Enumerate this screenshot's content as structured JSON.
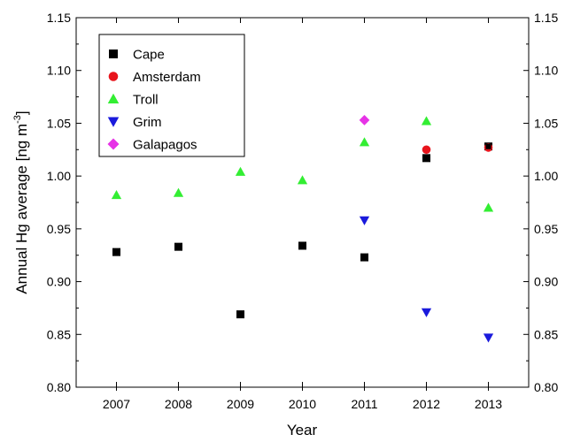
{
  "chart_data": {
    "type": "scatter",
    "title": "",
    "xlabel": "Year",
    "ylabel_main": "Annual Hg average [ng m",
    "ylabel_sup": "-3",
    "ylabel_close": "]",
    "x_ticks": [
      2007,
      2008,
      2009,
      2010,
      2011,
      2012,
      2013
    ],
    "xlim": [
      2006.35,
      2013.65
    ],
    "ylim": [
      0.8,
      1.15
    ],
    "y_ticks": [
      "0.80",
      "0.85",
      "0.90",
      "0.95",
      "1.00",
      "1.05",
      "1.10",
      "1.15"
    ],
    "y_ticks_right": [
      "0.80",
      "0.85",
      "0.90",
      "0.95",
      "1.00",
      "1.05",
      "1.10",
      "1.15"
    ],
    "legend_position": "top-left",
    "grid": false,
    "series": [
      {
        "name": "Cape",
        "marker": "square",
        "color": "#000000",
        "x": [
          2007,
          2008,
          2009,
          2010,
          2011,
          2012,
          2013
        ],
        "y": [
          0.928,
          0.933,
          0.869,
          0.934,
          0.923,
          1.017,
          1.028
        ]
      },
      {
        "name": "Amsterdam",
        "marker": "circle",
        "color": "#e8141c",
        "x": [
          2012,
          2013
        ],
        "y": [
          1.025,
          1.027
        ]
      },
      {
        "name": "Troll",
        "marker": "triangle-up",
        "color": "#33ee33",
        "x": [
          2007,
          2008,
          2009,
          2010,
          2011,
          2012,
          2013
        ],
        "y": [
          0.982,
          0.984,
          1.004,
          0.996,
          1.032,
          1.052,
          0.97
        ]
      },
      {
        "name": "Grim",
        "marker": "triangle-down",
        "color": "#1a1adc",
        "x": [
          2011,
          2012,
          2013
        ],
        "y": [
          0.958,
          0.871,
          0.847
        ]
      },
      {
        "name": "Galapagos",
        "marker": "diamond",
        "color": "#e633e6",
        "x": [
          2011
        ],
        "y": [
          1.053
        ]
      }
    ]
  }
}
